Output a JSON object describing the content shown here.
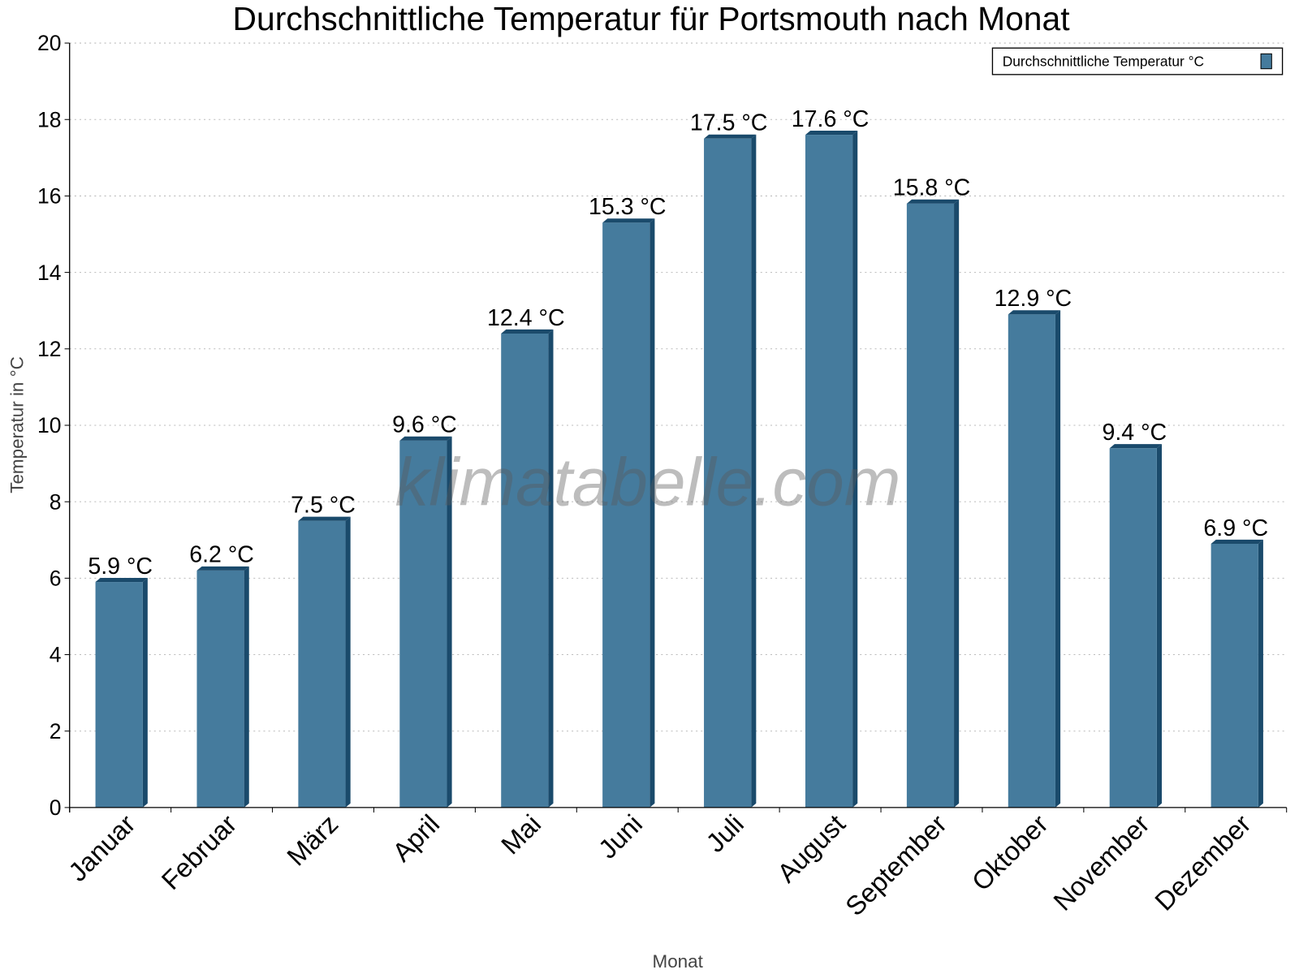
{
  "chart_data": {
    "type": "bar",
    "title": "Durchschnittliche Temperatur für Portsmouth nach Monat",
    "xlabel": "Monat",
    "ylabel": "Temperatur in °C",
    "ylim": [
      0,
      20
    ],
    "yticks": [
      "0",
      "2",
      "4",
      "6",
      "8",
      "10",
      "12",
      "14",
      "16",
      "18",
      "20"
    ],
    "grid": true,
    "legend_position": "top-right",
    "categories": [
      "Januar",
      "Februar",
      "März",
      "April",
      "Mai",
      "Juni",
      "Juli",
      "August",
      "September",
      "Oktober",
      "November",
      "Dezember"
    ],
    "series": [
      {
        "name": "Durchschnittliche Temperatur °C",
        "values": [
          5.9,
          6.2,
          7.5,
          9.6,
          12.4,
          15.3,
          17.5,
          17.6,
          15.8,
          12.9,
          9.4,
          6.9
        ],
        "labels": [
          "5.9 °C",
          "6.2 °C",
          "7.5 °C",
          "9.6 °C",
          "12.4 °C",
          "15.3 °C",
          "17.5 °C",
          "17.6 °C",
          "15.8 °C",
          "12.9 °C",
          "9.4 °C",
          "6.9 °C"
        ],
        "color": "#457b9d",
        "side_color": "#1a4a6b"
      }
    ],
    "watermark": "klimatabelle.com"
  }
}
